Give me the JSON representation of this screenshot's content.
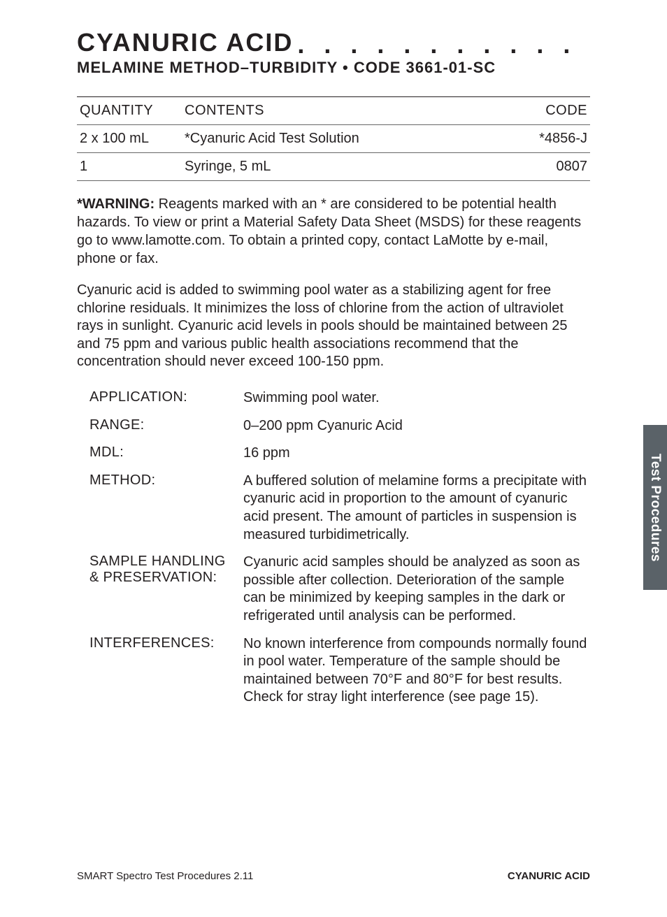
{
  "header": {
    "title": "CYANURIC ACID",
    "dots": ". . . . . . . . . . . . . . . . . . . . . . .",
    "subtitle": "MELAMINE METHOD–TURBIDITY • CODE 3661-01-SC"
  },
  "table": {
    "columns": [
      "QUANTITY",
      "CONTENTS",
      "CODE"
    ],
    "rows": [
      [
        "2 x 100 mL",
        "*Cyanuric Acid Test Solution",
        "*4856-J"
      ],
      [
        "1",
        "Syringe, 5 mL",
        "0807"
      ]
    ]
  },
  "warning": {
    "label": "*WARNING:",
    "text": " Reagents marked with an * are considered to be potential health hazards. To view or print a Material Safety Data Sheet (MSDS) for these reagents go to www.lamotte.com. To obtain a printed copy, contact LaMotte by e-mail, phone or fax."
  },
  "paragraph": "Cyanuric acid is added to swimming pool water as a stabilizing agent for free chlorine residuals. It minimizes the loss of chlorine from the action of ultraviolet rays in sunlight. Cyanuric acid levels in pools should be maintained between 25 and 75 ppm and various public health associations recommend that the concentration should never exceed 100-150 ppm.",
  "definitions": [
    {
      "label": "APPLICATION:",
      "value": "Swimming pool water."
    },
    {
      "label": "RANGE:",
      "value": "0–200 ppm Cyanuric Acid"
    },
    {
      "label": "MDL:",
      "value": "16 ppm"
    },
    {
      "label": "METHOD:",
      "value": "A buffered solution of melamine forms a precipitate with cyanuric acid in proportion to the amount of cyanuric acid present. The amount of particles in suspension is measured turbidimetrically."
    },
    {
      "label": "SAMPLE HANDLING & PRESERVATION:",
      "value": "Cyanuric acid samples should be analyzed as soon as possible after collection. Deterioration of the sample can be minimized by keeping samples in the dark or refrigerated until analysis can be performed."
    },
    {
      "label": "INTERFERENCES:",
      "value": "No known interference from compounds normally found in pool water. Temperature of the sample should be maintained between 70°F and 80°F for best results. Check for stray light interference (see page 15)."
    }
  ],
  "sideTab": "Test Procedures",
  "footer": {
    "left": "SMART Spectro Test Procedures 2.11",
    "right": "CYANURIC ACID"
  },
  "colors": {
    "text": "#231f20",
    "tab_bg": "#5a6268",
    "tab_text": "#ffffff",
    "rule": "#666666"
  }
}
